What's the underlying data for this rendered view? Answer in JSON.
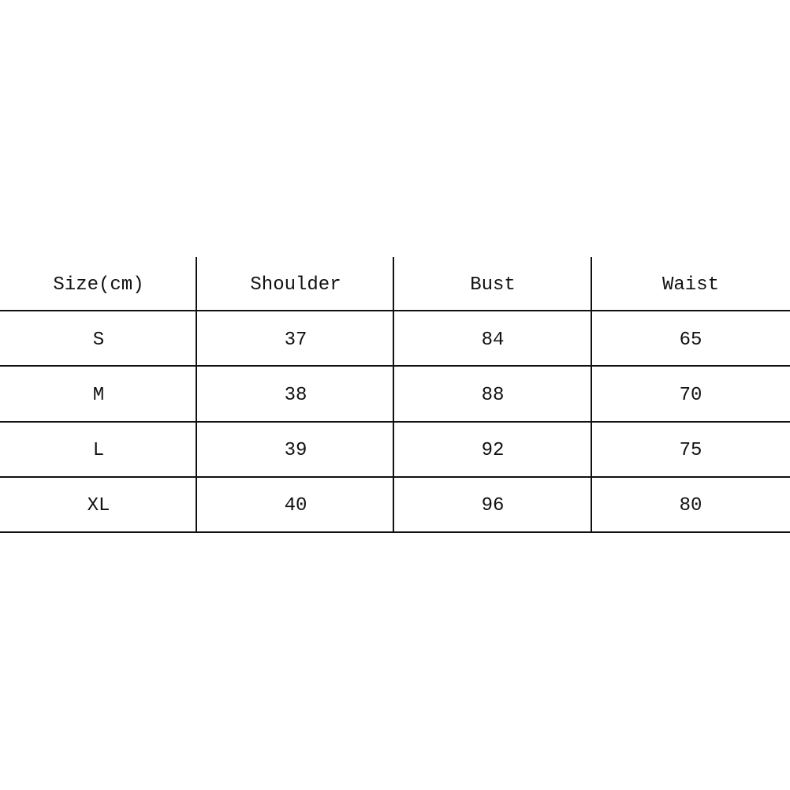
{
  "table": {
    "headers": [
      "Size(cm)",
      "Shoulder",
      "Bust",
      "Waist"
    ],
    "rows": [
      [
        "S",
        "37",
        "84",
        "65"
      ],
      [
        "M",
        "38",
        "88",
        "70"
      ],
      [
        "L",
        "39",
        "92",
        "75"
      ],
      [
        "XL",
        "40",
        "96",
        "80"
      ]
    ]
  }
}
